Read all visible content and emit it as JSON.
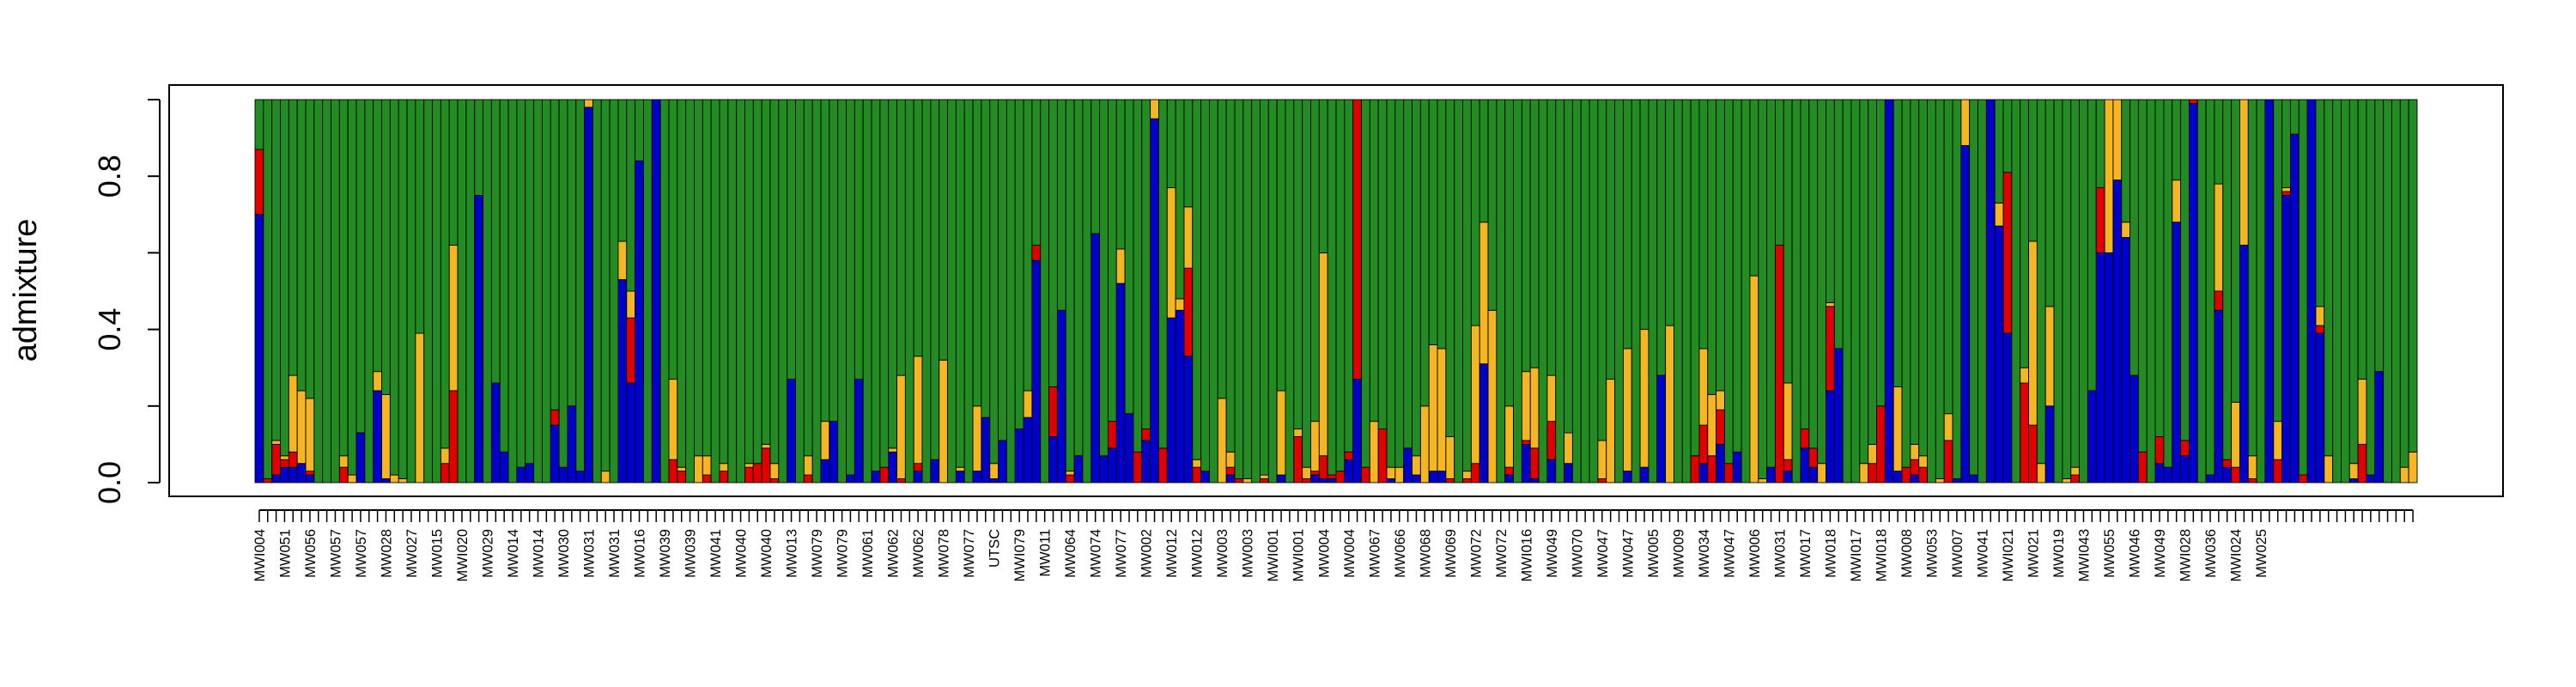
{
  "chart_data": {
    "type": "bar",
    "stacked": true,
    "ylabel": "admixture",
    "ylim": [
      0,
      1
    ],
    "yticks": [
      "0.0",
      "0.4",
      "0.8"
    ],
    "ytick_values": [
      0,
      0.2,
      0.4,
      0.6,
      0.8,
      1.0
    ],
    "grid": false,
    "legend": "none",
    "colors": {
      "blue": "#0000cd",
      "red": "#e00000",
      "orange": "#f5b622",
      "green": "#228b22"
    },
    "stack_order": [
      "blue",
      "red",
      "orange",
      "green"
    ],
    "xtick_labels": [
      "MWI004",
      "MW051",
      "MW056",
      "MW057",
      "MW057",
      "MW028",
      "MW027",
      "MW015",
      "MWI020",
      "MW029",
      "MW014",
      "MW014",
      "MW030",
      "MW031",
      "MW031",
      "MW016",
      "MW039",
      "MW039",
      "MW041",
      "MW040",
      "MW040",
      "MW013",
      "MW079",
      "MW079",
      "MW061",
      "MW062",
      "MW062",
      "MW078",
      "MW077",
      "UTSC",
      "MWI079",
      "MW011",
      "MW064",
      "MW074",
      "MW077",
      "MW002",
      "MW012",
      "MW012",
      "MW003",
      "MW003",
      "MWI001",
      "MWI001",
      "MW004",
      "MW004",
      "MW067",
      "MW066",
      "MW068",
      "MW069",
      "MW072",
      "MW072",
      "MWI016",
      "MW049",
      "MW070",
      "MW047",
      "MW047",
      "MW005",
      "MW009",
      "MW034",
      "MW047",
      "MW006",
      "MW031",
      "MW017",
      "MW018",
      "MWI017",
      "MWI018",
      "MW008",
      "MW053",
      "MW007",
      "MW041",
      "MWI021",
      "MW021",
      "MW019",
      "MWI043",
      "MW055",
      "MW046",
      "MW049",
      "MWI028",
      "MW036",
      "MWI024",
      "MW025"
    ],
    "bars": [
      [
        0.7,
        0.17,
        0,
        0.13
      ],
      [
        0,
        0.01,
        0,
        0.99
      ],
      [
        0.02,
        0.08,
        0.01,
        0.89
      ],
      [
        0.04,
        0.02,
        0.01,
        0.93
      ],
      [
        0.04,
        0.04,
        0.2,
        0.72
      ],
      [
        0.05,
        0,
        0.19,
        0.76
      ],
      [
        0.02,
        0.01,
        0.19,
        0.78
      ],
      [
        0,
        0,
        0,
        1
      ],
      [
        0,
        0,
        0,
        1
      ],
      [
        0,
        0,
        0,
        1
      ],
      [
        0,
        0.04,
        0.03,
        0.93
      ],
      [
        0,
        0,
        0.02,
        0.98
      ],
      [
        0.13,
        0,
        0,
        0.87
      ],
      [
        0,
        0,
        0,
        1
      ],
      [
        0.24,
        0,
        0.05,
        0.71
      ],
      [
        0.01,
        0,
        0.22,
        0.77
      ],
      [
        0,
        0,
        0.02,
        0.98
      ],
      [
        0,
        0,
        0.01,
        0.99
      ],
      [
        0,
        0,
        0,
        1
      ],
      [
        0,
        0,
        0.39,
        0.61
      ],
      [
        0,
        0,
        0,
        1
      ],
      [
        0,
        0,
        0,
        1
      ],
      [
        0,
        0.05,
        0.04,
        0.91
      ],
      [
        0,
        0.24,
        0.38,
        0.38
      ],
      [
        0,
        0,
        0,
        1
      ],
      [
        0,
        0,
        0,
        1
      ],
      [
        0.75,
        0,
        0,
        0.25
      ],
      [
        0,
        0,
        0,
        1
      ],
      [
        0.26,
        0,
        0,
        0.74
      ],
      [
        0.08,
        0,
        0,
        0.92
      ],
      [
        0,
        0,
        0,
        1
      ],
      [
        0.04,
        0,
        0,
        0.96
      ],
      [
        0.05,
        0,
        0,
        0.95
      ],
      [
        0,
        0,
        0,
        1
      ],
      [
        0,
        0,
        0,
        1
      ],
      [
        0.15,
        0.04,
        0,
        0.81
      ],
      [
        0.04,
        0,
        0,
        0.96
      ],
      [
        0.2,
        0,
        0,
        0.8
      ],
      [
        0.03,
        0,
        0,
        0.97
      ],
      [
        0.98,
        0,
        0.02,
        0
      ],
      [
        0,
        0,
        0,
        1
      ],
      [
        0,
        0,
        0.03,
        0.97
      ],
      [
        0,
        0,
        0,
        1
      ],
      [
        0.53,
        0,
        0.1,
        0.37
      ],
      [
        0.26,
        0.17,
        0.07,
        0.5
      ],
      [
        0.84,
        0,
        0,
        0.16
      ],
      [
        0,
        0,
        0,
        1
      ],
      [
        1,
        0,
        0,
        0
      ],
      [
        0,
        0,
        0,
        1
      ],
      [
        0,
        0.06,
        0.21,
        0.73
      ],
      [
        0,
        0.03,
        0.01,
        0.96
      ],
      [
        0,
        0,
        0,
        1
      ],
      [
        0,
        0,
        0.07,
        0.93
      ],
      [
        0,
        0.02,
        0.05,
        0.93
      ],
      [
        0,
        0,
        0,
        1
      ],
      [
        0,
        0.03,
        0.02,
        0.95
      ],
      [
        0,
        0,
        0,
        1
      ],
      [
        0,
        0,
        0,
        1
      ],
      [
        0,
        0.04,
        0.01,
        0.95
      ],
      [
        0,
        0.05,
        0,
        0.95
      ],
      [
        0,
        0.09,
        0.01,
        0.9
      ],
      [
        0,
        0.01,
        0.04,
        0.95
      ],
      [
        0,
        0,
        0,
        1
      ],
      [
        0.27,
        0,
        0,
        0.73
      ],
      [
        0,
        0,
        0,
        1
      ],
      [
        0,
        0.02,
        0.05,
        0.93
      ],
      [
        0,
        0,
        0,
        1
      ],
      [
        0.06,
        0,
        0.1,
        0.84
      ],
      [
        0.16,
        0,
        0,
        0.84
      ],
      [
        0,
        0,
        0,
        1
      ],
      [
        0.02,
        0,
        0,
        0.98
      ],
      [
        0.27,
        0,
        0,
        0.73
      ],
      [
        0,
        0,
        0,
        1
      ],
      [
        0.03,
        0,
        0,
        0.97
      ],
      [
        0,
        0.04,
        0,
        0.96
      ],
      [
        0.08,
        0,
        0.01,
        0.91
      ],
      [
        0,
        0.01,
        0.27,
        0.72
      ],
      [
        0,
        0,
        0,
        1
      ],
      [
        0.03,
        0.02,
        0.28,
        0.67
      ],
      [
        0,
        0,
        0,
        1
      ],
      [
        0.06,
        0,
        0,
        0.94
      ],
      [
        0,
        0,
        0.32,
        0.68
      ],
      [
        0,
        0,
        0,
        1
      ],
      [
        0.03,
        0,
        0.01,
        0.96
      ],
      [
        0,
        0,
        0,
        1
      ],
      [
        0.03,
        0,
        0.17,
        0.8
      ],
      [
        0.17,
        0,
        0,
        0.83
      ],
      [
        0.01,
        0,
        0.04,
        0.95
      ],
      [
        0.11,
        0,
        0,
        0.89
      ],
      [
        0,
        0,
        0,
        1
      ],
      [
        0.14,
        0,
        0,
        0.86
      ],
      [
        0.17,
        0,
        0.07,
        0.76
      ],
      [
        0.58,
        0.04,
        0,
        0.38
      ],
      [
        0,
        0,
        0,
        1
      ],
      [
        0.12,
        0.13,
        0,
        0.75
      ],
      [
        0.45,
        0,
        0,
        0.55
      ],
      [
        0,
        0.02,
        0.01,
        0.97
      ],
      [
        0.07,
        0,
        0,
        0.93
      ],
      [
        0,
        0,
        0,
        1
      ],
      [
        0.65,
        0,
        0,
        0.35
      ],
      [
        0.07,
        0,
        0,
        0.93
      ],
      [
        0.09,
        0.07,
        0,
        0.84
      ],
      [
        0.52,
        0,
        0.09,
        0.39
      ],
      [
        0.18,
        0,
        0,
        0.82
      ],
      [
        0,
        0.08,
        0,
        0.92
      ],
      [
        0.11,
        0.03,
        0,
        0.86
      ],
      [
        0.95,
        0,
        0.05,
        0
      ],
      [
        0,
        0.09,
        0,
        0.91
      ],
      [
        0.43,
        0,
        0.34,
        0.23
      ],
      [
        0.45,
        0,
        0.03,
        0.52
      ],
      [
        0.33,
        0.23,
        0.16,
        0.28
      ],
      [
        0,
        0.04,
        0.02,
        0.94
      ],
      [
        0.03,
        0,
        0,
        0.97
      ],
      [
        0,
        0,
        0,
        1
      ],
      [
        0,
        0,
        0.22,
        0.78
      ],
      [
        0.02,
        0.02,
        0.04,
        0.92
      ],
      [
        0,
        0.01,
        0,
        0.99
      ],
      [
        0,
        0,
        0.01,
        0.99
      ],
      [
        0,
        0,
        0,
        1
      ],
      [
        0,
        0.01,
        0.01,
        0.98
      ],
      [
        0,
        0,
        0,
        1
      ],
      [
        0.02,
        0,
        0.22,
        0.76
      ],
      [
        0,
        0,
        0,
        1
      ],
      [
        0,
        0.12,
        0.02,
        0.86
      ],
      [
        0,
        0.01,
        0.03,
        0.96
      ],
      [
        0.02,
        0.01,
        0.13,
        0.84
      ],
      [
        0.01,
        0.06,
        0.53,
        0.4
      ],
      [
        0.01,
        0.01,
        0,
        0.98
      ],
      [
        0,
        0.03,
        0,
        0.97
      ],
      [
        0.06,
        0.02,
        0,
        0.92
      ],
      [
        0.27,
        0.73,
        0,
        0
      ],
      [
        0,
        0.04,
        0,
        0.96
      ],
      [
        0,
        0,
        0.16,
        0.84
      ],
      [
        0,
        0.14,
        0,
        0.86
      ],
      [
        0.01,
        0,
        0.03,
        0.96
      ],
      [
        0,
        0,
        0.04,
        0.96
      ],
      [
        0.09,
        0,
        0,
        0.91
      ],
      [
        0.02,
        0,
        0.05,
        0.93
      ],
      [
        0,
        0,
        0.2,
        0.8
      ],
      [
        0.03,
        0,
        0.33,
        0.64
      ],
      [
        0.03,
        0,
        0.32,
        0.65
      ],
      [
        0,
        0.01,
        0.11,
        0.88
      ],
      [
        0,
        0,
        0,
        1
      ],
      [
        0,
        0.01,
        0.02,
        0.97
      ],
      [
        0,
        0.05,
        0.36,
        0.59
      ],
      [
        0.31,
        0,
        0.37,
        0.32
      ],
      [
        0,
        0,
        0.45,
        0.55
      ],
      [
        0,
        0,
        0,
        1
      ],
      [
        0.02,
        0.02,
        0.16,
        0.8
      ],
      [
        0,
        0,
        0,
        1
      ],
      [
        0.1,
        0.01,
        0.18,
        0.71
      ],
      [
        0.01,
        0.08,
        0.21,
        0.7
      ],
      [
        0,
        0,
        0,
        1
      ],
      [
        0.06,
        0.1,
        0.12,
        0.72
      ],
      [
        0,
        0,
        0,
        1
      ],
      [
        0.05,
        0,
        0.08,
        0.87
      ],
      [
        0,
        0,
        0,
        1
      ],
      [
        0,
        0,
        0,
        1
      ],
      [
        0,
        0,
        0,
        1
      ],
      [
        0,
        0.01,
        0.1,
        0.89
      ],
      [
        0,
        0,
        0.27,
        0.73
      ],
      [
        0,
        0,
        0,
        1
      ],
      [
        0.03,
        0,
        0.32,
        0.65
      ],
      [
        0,
        0,
        0,
        1
      ],
      [
        0.04,
        0,
        0.36,
        0.6
      ],
      [
        0,
        0,
        0,
        1
      ],
      [
        0.28,
        0,
        0,
        0.72
      ],
      [
        0,
        0,
        0.41,
        0.59
      ],
      [
        0,
        0,
        0,
        1
      ],
      [
        0,
        0,
        0,
        1
      ],
      [
        0,
        0.07,
        0,
        0.93
      ],
      [
        0.05,
        0.1,
        0.2,
        0.65
      ],
      [
        0,
        0.07,
        0.16,
        0.77
      ],
      [
        0.1,
        0.09,
        0.05,
        0.76
      ],
      [
        0,
        0.05,
        0,
        0.95
      ],
      [
        0.08,
        0,
        0,
        0.92
      ],
      [
        0,
        0,
        0,
        1
      ],
      [
        0,
        0,
        0.54,
        0.46
      ],
      [
        0,
        0,
        0.01,
        0.99
      ],
      [
        0.04,
        0,
        0,
        0.96
      ],
      [
        0,
        0.62,
        0,
        0.38
      ],
      [
        0.03,
        0.03,
        0.2,
        0.74
      ],
      [
        0,
        0,
        0,
        1
      ],
      [
        0.09,
        0.05,
        0,
        0.86
      ],
      [
        0.04,
        0.05,
        0,
        0.91
      ],
      [
        0,
        0,
        0.05,
        0.95
      ],
      [
        0.24,
        0.22,
        0.01,
        0.53
      ],
      [
        0.35,
        0,
        0,
        0.65
      ],
      [
        0,
        0,
        0,
        1
      ],
      [
        0,
        0,
        0,
        1
      ],
      [
        0,
        0,
        0.05,
        0.95
      ],
      [
        0,
        0.05,
        0.05,
        0.9
      ],
      [
        0,
        0.2,
        0,
        0.8
      ],
      [
        1,
        0,
        0,
        0
      ],
      [
        0.03,
        0,
        0.22,
        0.75
      ],
      [
        0,
        0.04,
        0,
        0.96
      ],
      [
        0.02,
        0.04,
        0.04,
        0.9
      ],
      [
        0,
        0.04,
        0.03,
        0.93
      ],
      [
        0,
        0,
        0,
        1
      ],
      [
        0,
        0,
        0.01,
        0.99
      ],
      [
        0,
        0.11,
        0.07,
        0.82
      ],
      [
        0.01,
        0,
        0,
        0.99
      ],
      [
        0.88,
        0,
        0.12,
        0
      ],
      [
        0.02,
        0,
        0,
        0.98
      ],
      [
        0,
        0,
        0,
        1
      ],
      [
        1,
        0,
        0,
        0
      ],
      [
        0.67,
        0,
        0.06,
        0.27
      ],
      [
        0.39,
        0.42,
        0,
        0.19
      ],
      [
        0,
        0,
        0,
        1
      ],
      [
        0,
        0.26,
        0.04,
        0.7
      ],
      [
        0,
        0.15,
        0.48,
        0.37
      ],
      [
        0,
        0,
        0.05,
        0.95
      ],
      [
        0.2,
        0,
        0.26,
        0.54
      ],
      [
        0,
        0,
        0,
        1
      ],
      [
        0,
        0,
        0.01,
        0.99
      ],
      [
        0,
        0.02,
        0.02,
        0.96
      ],
      [
        0,
        0,
        0,
        1
      ],
      [
        0.24,
        0,
        0,
        0.76
      ],
      [
        0.6,
        0.17,
        0,
        0.23
      ],
      [
        0.6,
        0,
        0.4,
        0
      ],
      [
        0.79,
        0,
        0.21,
        0
      ],
      [
        0.64,
        0,
        0.04,
        0.32
      ],
      [
        0.28,
        0,
        0,
        0.72
      ],
      [
        0,
        0.08,
        0,
        0.92
      ],
      [
        0,
        0,
        0,
        1
      ],
      [
        0.05,
        0.07,
        0,
        0.88
      ],
      [
        0.04,
        0,
        0,
        0.96
      ],
      [
        0.68,
        0,
        0.11,
        0.21
      ],
      [
        0.07,
        0.04,
        0,
        0.89
      ],
      [
        0.99,
        0.01,
        0,
        0
      ],
      [
        0,
        0,
        0,
        1
      ],
      [
        0.02,
        0,
        0,
        0.98
      ],
      [
        0.45,
        0.05,
        0.28,
        0.22
      ],
      [
        0.04,
        0.02,
        0,
        0.94
      ],
      [
        0,
        0.04,
        0.17,
        0.79
      ],
      [
        0.62,
        0,
        0.38,
        0
      ],
      [
        0,
        0.01,
        0.06,
        0.93
      ],
      [
        0,
        0,
        0,
        1
      ],
      [
        1,
        0,
        0,
        0
      ],
      [
        0,
        0.06,
        0.1,
        0.84
      ],
      [
        0.75,
        0.01,
        0.01,
        0.23
      ],
      [
        0.91,
        0,
        0,
        0.09
      ],
      [
        0,
        0.02,
        0,
        0.98
      ],
      [
        1,
        0,
        0,
        0
      ],
      [
        0.39,
        0.02,
        0.05,
        0.54
      ],
      [
        0,
        0,
        0.07,
        0.93
      ],
      [
        0,
        0,
        0,
        1
      ],
      [
        0,
        0,
        0,
        1
      ],
      [
        0.01,
        0,
        0.04,
        0.95
      ],
      [
        0,
        0.1,
        0.17,
        0.73
      ],
      [
        0.02,
        0,
        0,
        0.98
      ],
      [
        0.29,
        0,
        0,
        0.71
      ],
      [
        0,
        0,
        0,
        1
      ],
      [
        0,
        0,
        0,
        1
      ],
      [
        0,
        0,
        0.04,
        0.96
      ],
      [
        0,
        0,
        0.08,
        0.92
      ]
    ]
  }
}
